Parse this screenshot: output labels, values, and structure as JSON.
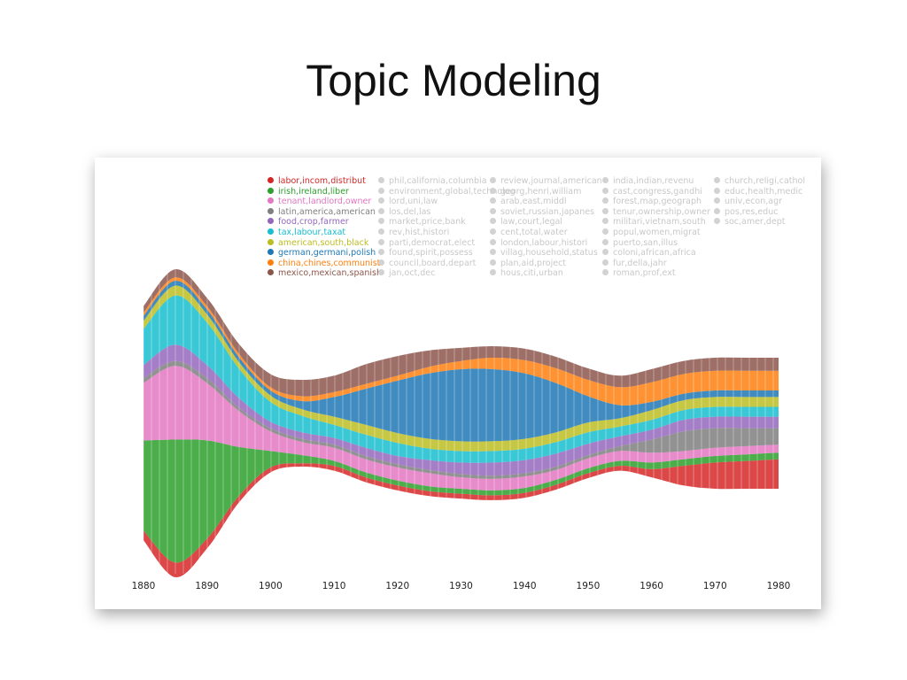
{
  "slide": {
    "title": "Topic Modeling"
  },
  "chart_data": {
    "type": "area",
    "title": "",
    "xlabel": "",
    "ylabel": "",
    "xlim": [
      1880,
      1980
    ],
    "x_ticks": [
      1880,
      1890,
      1900,
      1910,
      1920,
      1930,
      1940,
      1950,
      1960,
      1970,
      1980
    ],
    "x": [
      1880,
      1885,
      1890,
      1895,
      1900,
      1905,
      1910,
      1915,
      1920,
      1925,
      1930,
      1935,
      1940,
      1945,
      1950,
      1955,
      1960,
      1965,
      1970,
      1975,
      1980
    ],
    "legend_position": "top",
    "series": [
      {
        "name": "labor,incom,distribut",
        "color": "#d62728",
        "values": [
          6,
          9,
          6,
          4,
          3,
          2,
          3,
          3,
          3,
          3,
          3,
          3,
          3,
          3,
          3,
          3,
          5,
          12,
          16,
          17,
          18
        ]
      },
      {
        "name": "irish,ireland,liber",
        "color": "#2ca02c",
        "values": [
          55,
          75,
          60,
          30,
          10,
          5,
          3,
          3,
          3,
          3,
          3,
          3,
          3,
          3,
          3,
          3,
          4,
          4,
          4,
          4,
          4
        ]
      },
      {
        "name": "tenant,landlord,owner",
        "color": "#e377c2",
        "values": [
          35,
          45,
          35,
          22,
          12,
          8,
          8,
          8,
          8,
          8,
          7,
          7,
          7,
          6,
          6,
          6,
          6,
          5,
          5,
          5,
          5
        ]
      },
      {
        "name": "latin,america,american",
        "color": "#7f7f7f",
        "values": [
          3,
          3,
          3,
          2,
          2,
          2,
          2,
          2,
          2,
          2,
          2,
          2,
          2,
          2,
          2,
          3,
          8,
          12,
          12,
          11,
          10
        ]
      },
      {
        "name": "food,crop,farmer",
        "color": "#9467bd",
        "values": [
          8,
          10,
          8,
          6,
          4,
          4,
          4,
          5,
          5,
          6,
          7,
          8,
          8,
          8,
          7,
          6,
          6,
          7,
          7,
          7,
          7
        ]
      },
      {
        "name": "tax,labour,taxat",
        "color": "#17becf",
        "values": [
          22,
          30,
          26,
          18,
          12,
          10,
          8,
          8,
          8,
          7,
          7,
          7,
          7,
          7,
          7,
          6,
          6,
          6,
          6,
          6,
          6
        ]
      },
      {
        "name": "american,south,black",
        "color": "#bcbd22",
        "values": [
          5,
          6,
          5,
          4,
          4,
          4,
          5,
          6,
          6,
          6,
          6,
          6,
          6,
          6,
          6,
          5,
          6,
          6,
          6,
          6,
          6
        ]
      },
      {
        "name": "german,germani,polish",
        "color": "#1f77b4",
        "values": [
          3,
          3,
          3,
          3,
          3,
          5,
          12,
          22,
          32,
          40,
          44,
          44,
          40,
          30,
          16,
          8,
          5,
          4,
          4,
          4,
          4
        ]
      },
      {
        "name": "china,chines,communist",
        "color": "#ff7f0e",
        "values": [
          2,
          2,
          2,
          2,
          2,
          3,
          3,
          3,
          3,
          4,
          5,
          7,
          8,
          9,
          10,
          11,
          12,
          12,
          12,
          12,
          12
        ]
      },
      {
        "name": "mexico,mexican,spanish",
        "color": "#8c564b",
        "values": [
          4,
          5,
          5,
          6,
          8,
          10,
          10,
          12,
          12,
          10,
          8,
          7,
          7,
          7,
          7,
          7,
          8,
          8,
          8,
          8,
          8
        ]
      }
    ],
    "faded_legend_columns": [
      [
        "phil,california,columbia",
        "environment,global,technolog",
        "lord,uni,law",
        "los,del,las",
        "market,price,bank",
        "rev,hist,histori",
        "parti,democrat,elect",
        "found,spirit,possess",
        "council,board,depart",
        "jan,oct,dec"
      ],
      [
        "review,journal,american",
        "georg,henri,william",
        "arab,east,middl",
        "soviet,russian,japanes",
        "law,court,legal",
        "cent,total,water",
        "london,labour,histori",
        "villag,household,status",
        "plan,aid,project",
        "hous,citi,urban"
      ],
      [
        "india,indian,revenu",
        "cast,congress,gandhi",
        "forest,map,geograph",
        "tenur,ownership,owner",
        "militari,vietnam,south",
        "popul,women,migrat",
        "puerto,san,illus",
        "coloni,african,africa",
        "fur,della,jahr",
        "roman,prof,ext"
      ],
      [
        "church,religi,cathol",
        "educ,health,medic",
        "univ,econ,agr",
        "pos,res,educ",
        "soc,amer,dept"
      ]
    ]
  }
}
